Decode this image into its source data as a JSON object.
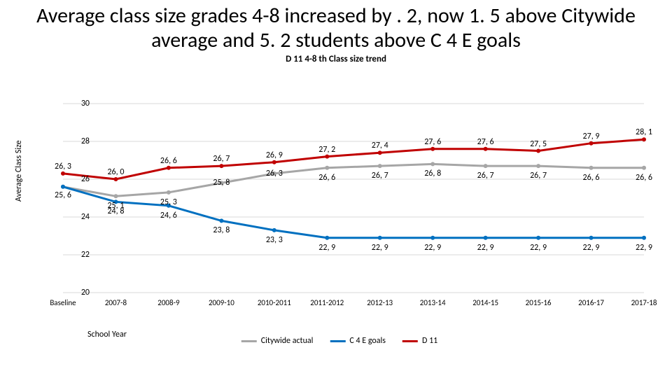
{
  "title": "Average class size grades 4-8 increased by . 2, now 1. 5 above Citywide average and 5. 2 students above C 4 E goals",
  "subtitle": "D 11 4-8 th Class size trend",
  "ylabel": "Average Class Size",
  "xlabel": "School Year",
  "chart": {
    "type": "line",
    "ylim": [
      20,
      30
    ],
    "ytick_step": 2,
    "categories": [
      "Baseline",
      "2007-8",
      "2008-9",
      "2009-10",
      "2010-2011",
      "2011-2012",
      "2012-13",
      "2013-14",
      "2014-15",
      "2015-16",
      "2016-17",
      "2017-18"
    ],
    "background_color": "#ffffff",
    "grid_color": "#d9d9d9",
    "grid_on": true,
    "line_width": 3,
    "series": [
      {
        "name": "Citywide actual",
        "color": "#a6a6a6",
        "values": [
          25.6,
          25.1,
          25.3,
          25.8,
          26.3,
          26.6,
          26.7,
          26.8,
          26.7,
          26.7,
          26.6,
          26.6
        ],
        "labels": [
          "25, 6",
          "25, 1",
          "25, 3",
          "25, 8",
          "26, 3",
          "26, 6",
          "26, 7",
          "26, 8",
          "26, 7",
          "26, 7",
          "26, 6",
          "26, 6"
        ],
        "label_dy": [
          12,
          14,
          14,
          0,
          0,
          14,
          14,
          14,
          14,
          14,
          14,
          14
        ]
      },
      {
        "name": "C 4 E goals",
        "color": "#0070c0",
        "values": [
          25.6,
          24.8,
          24.6,
          23.8,
          23.3,
          22.9,
          22.9,
          22.9,
          22.9,
          22.9,
          22.9,
          22.9
        ],
        "labels": [
          "",
          "24, 8",
          "24, 6",
          "23, 8",
          "23, 3",
          "22, 9",
          "22, 9",
          "22, 9",
          "22, 9",
          "22, 9",
          "22, 9",
          "22, 9"
        ],
        "label_dy": [
          0,
          14,
          14,
          14,
          14,
          14,
          14,
          14,
          14,
          14,
          14,
          14
        ]
      },
      {
        "name": "D 11",
        "color": "#c00000",
        "values": [
          26.3,
          26.0,
          26.6,
          26.7,
          26.9,
          27.2,
          27.4,
          27.6,
          27.6,
          27.5,
          27.9,
          28.1
        ],
        "labels": [
          "26, 3",
          "26, 0",
          "26, 6",
          "26, 7",
          "26, 9",
          "27, 2",
          "27, 4",
          "27, 6",
          "27, 6",
          "27, 5",
          "27, 9",
          "28, 1"
        ],
        "label_dy": [
          -10,
          -10,
          -10,
          -10,
          -10,
          -10,
          -10,
          -10,
          -10,
          -10,
          -10,
          -10
        ]
      }
    ]
  },
  "legend": {
    "items": [
      {
        "label": "Citywide actual",
        "color": "#a6a6a6"
      },
      {
        "label": "C 4 E goals",
        "color": "#0070c0"
      },
      {
        "label": "D 11",
        "color": "#c00000"
      }
    ]
  }
}
